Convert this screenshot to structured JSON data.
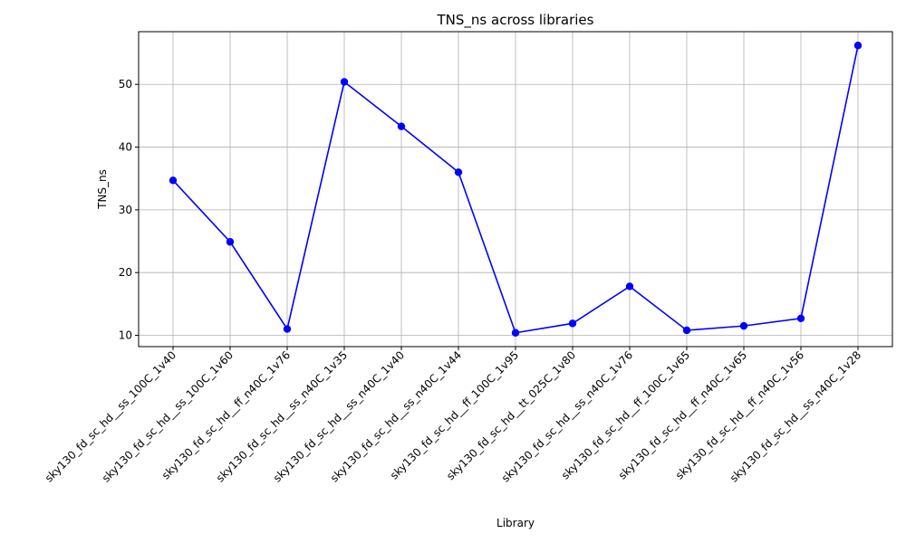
{
  "chart_data": {
    "type": "line",
    "title": "TNS_ns across libraries",
    "xlabel": "Library",
    "ylabel": "TNS_ns",
    "categories": [
      "sky130_fd_sc_hd__ss_100C_1v40",
      "sky130_fd_sc_hd__ss_100C_1v60",
      "sky130_fd_sc_hd__ff_n40C_1v76",
      "sky130_fd_sc_hd__ss_n40C_1v35",
      "sky130_fd_sc_hd__ss_n40C_1v40",
      "sky130_fd_sc_hd__ss_n40C_1v44",
      "sky130_fd_sc_hd__ff_100C_1v95",
      "sky130_fd_sc_hd__tt_025C_1v80",
      "sky130_fd_sc_hd__ss_n40C_1v76",
      "sky130_fd_sc_hd__ff_100C_1v65",
      "sky130_fd_sc_hd__ff_n40C_1v65",
      "sky130_fd_sc_hd__ff_n40C_1v56",
      "sky130_fd_sc_hd__ss_n40C_1v28"
    ],
    "series": [
      {
        "values": [
          34.7,
          24.9,
          11.0,
          50.4,
          43.3,
          36.0,
          10.4,
          11.9,
          17.8,
          10.8,
          11.5,
          12.7,
          56.2
        ],
        "color": "#0000ff",
        "marker": "circle"
      }
    ],
    "yticks": [
      10,
      20,
      30,
      40,
      50
    ],
    "ylim": [
      8.2,
      58.4
    ],
    "grid": true,
    "legend": "none"
  }
}
